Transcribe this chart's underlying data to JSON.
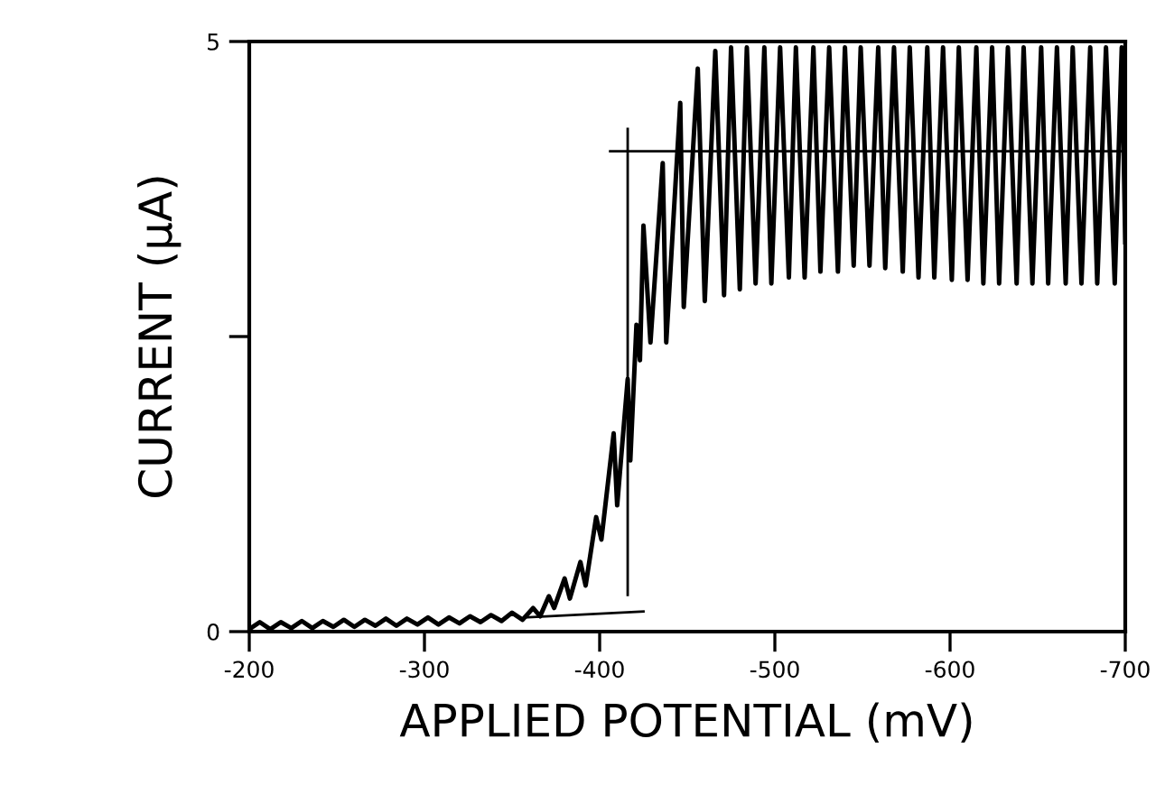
{
  "chart_data": {
    "type": "line",
    "xlabel": "APPLIED POTENTIAL (mV)",
    "ylabel": "CURRENT (µA)",
    "xlim": [
      -200,
      -700
    ],
    "xticks": [
      -200,
      -300,
      -400,
      -500,
      -600,
      -700
    ],
    "ylim": [
      0,
      5
    ],
    "yticks": [
      0,
      {
        "value": 2.5,
        "label": null
      },
      5
    ],
    "marker": "none",
    "line_style": "solid",
    "series": [
      {
        "color": "#000000",
        "x": [
          -200,
          -206,
          -212,
          -218,
          -224,
          -230,
          -236,
          -242,
          -248,
          -254,
          -260,
          -266,
          -272,
          -278,
          -284,
          -290,
          -296,
          -302,
          -308,
          -314,
          -320,
          -326,
          -332,
          -338,
          -344,
          -350,
          -356,
          -362,
          -366,
          -371,
          -374,
          -380,
          -383,
          -389,
          -392,
          -398,
          -401,
          -408,
          -410,
          -416,
          -417.5,
          -421,
          -423,
          -425,
          -429,
          -436,
          -438,
          -446,
          -448,
          -456,
          -460,
          -466,
          -471,
          -475,
          -480,
          -484,
          -489,
          -494,
          -498,
          -503,
          -508,
          -512,
          -517,
          -522,
          -526,
          -531,
          -536,
          -540,
          -545,
          -549,
          -554,
          -559,
          -563,
          -568,
          -573,
          -577,
          -582,
          -587,
          -591,
          -596,
          -601,
          -605,
          -610,
          -615,
          -619,
          -624,
          -628,
          -633,
          -638,
          -642,
          -647,
          -652,
          -656,
          -661,
          -666,
          -670,
          -675,
          -680,
          -684,
          -689,
          -694,
          -698,
          -700
        ],
        "values": [
          0.02,
          0.08,
          0.02,
          0.08,
          0.03,
          0.09,
          0.03,
          0.09,
          0.04,
          0.1,
          0.04,
          0.1,
          0.05,
          0.11,
          0.05,
          0.11,
          0.06,
          0.12,
          0.06,
          0.12,
          0.07,
          0.13,
          0.08,
          0.14,
          0.09,
          0.16,
          0.1,
          0.2,
          0.13,
          0.3,
          0.2,
          0.45,
          0.28,
          0.59,
          0.39,
          0.97,
          0.78,
          1.68,
          1.07,
          2.14,
          1.45,
          2.6,
          2.3,
          3.44,
          2.45,
          3.97,
          2.45,
          4.48,
          2.75,
          4.77,
          2.8,
          4.92,
          2.85,
          4.95,
          2.9,
          4.95,
          2.95,
          4.95,
          2.95,
          4.95,
          3.0,
          4.95,
          3.0,
          4.95,
          3.05,
          4.95,
          3.05,
          4.95,
          3.1,
          4.95,
          3.1,
          4.95,
          3.08,
          4.95,
          3.05,
          4.95,
          3.0,
          4.95,
          3.0,
          4.95,
          2.98,
          4.95,
          2.98,
          4.95,
          2.95,
          4.95,
          2.95,
          4.95,
          2.95,
          4.95,
          2.95,
          4.95,
          2.95,
          4.95,
          2.95,
          4.95,
          2.95,
          4.95,
          2.95,
          4.95,
          2.95,
          4.95,
          3.3
        ]
      },
      {
        "color": "#000000",
        "x": [
          -357,
          -425
        ],
        "values": [
          0.12,
          0.17
        ]
      },
      {
        "color": "#000000",
        "x": [
          -416,
          -416
        ],
        "values": [
          0.31,
          4.26
        ]
      },
      {
        "color": "#000000",
        "x": [
          -406,
          -700
        ],
        "values": [
          4.07,
          4.07
        ]
      }
    ]
  }
}
